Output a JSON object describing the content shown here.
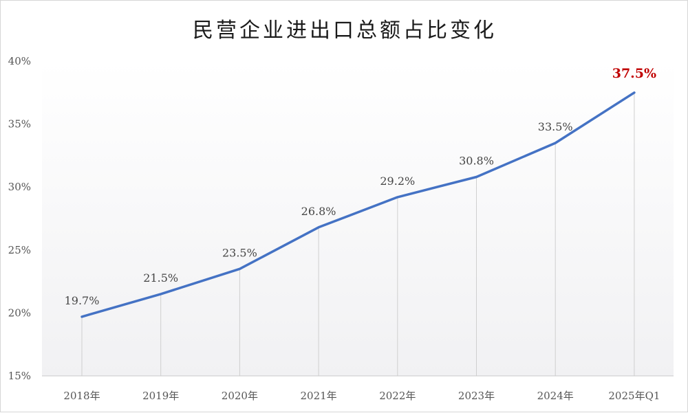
{
  "chart_data": {
    "type": "line",
    "title": "民营企业进出口总额占比变化",
    "categories": [
      "2018年",
      "2019年",
      "2020年",
      "2021年",
      "2022年",
      "2023年",
      "2024年",
      "2025年Q1"
    ],
    "series": [
      {
        "values": [
          19.7,
          21.5,
          23.5,
          26.8,
          29.2,
          30.8,
          33.5,
          37.5
        ],
        "data_labels": [
          "19.7%",
          "21.5%",
          "23.5%",
          "26.8%",
          "29.2%",
          "30.8%",
          "33.5%",
          "37.5%"
        ]
      }
    ],
    "y_ticks": [
      15,
      20,
      25,
      30,
      35,
      40
    ],
    "y_tick_labels": [
      "15%",
      "20%",
      "25%",
      "30%",
      "35%",
      "40%"
    ],
    "ylim": [
      15,
      40
    ],
    "grid": false,
    "drop_lines": true,
    "line_color": "#4472c4",
    "highlight_last_label_color": "#c00000",
    "background_gradient": [
      "#ffffff",
      "#f1f1f3"
    ]
  }
}
